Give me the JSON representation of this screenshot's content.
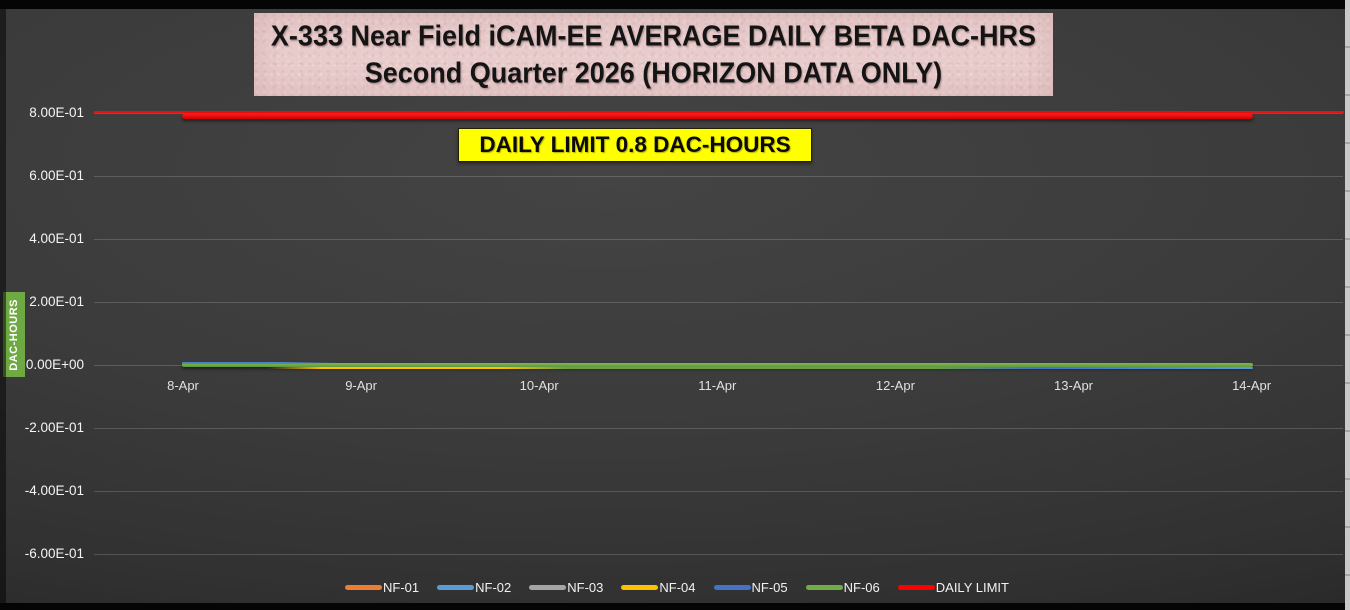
{
  "title": {
    "line1": "X-333 Near Field iCAM-EE AVERAGE DAILY BETA DAC-HRS",
    "line2": "Second Quarter 2026 (HORIZON DATA ONLY)"
  },
  "limit_label": "DAILY LIMIT 0.8 DAC-HOURS",
  "y_axis": {
    "title": "DAC-HOURS",
    "ticks": [
      "8.00E-01",
      "6.00E-01",
      "4.00E-01",
      "2.00E-01",
      "0.00E+00",
      "-2.00E-01",
      "-4.00E-01",
      "-6.00E-01"
    ]
  },
  "x_axis": {
    "labels": [
      "8-Apr",
      "9-Apr",
      "10-Apr",
      "11-Apr",
      "12-Apr",
      "13-Apr",
      "14-Apr"
    ]
  },
  "legend": [
    {
      "name": "NF-01",
      "color": "#ED7D31"
    },
    {
      "name": "NF-02",
      "color": "#5B9BD5"
    },
    {
      "name": "NF-03",
      "color": "#A5A5A5"
    },
    {
      "name": "NF-04",
      "color": "#FFC000"
    },
    {
      "name": "NF-05",
      "color": "#4472C4"
    },
    {
      "name": "NF-06",
      "color": "#70AD47"
    },
    {
      "name": "DAILY LIMIT",
      "color": "#FF0000"
    }
  ],
  "chart_data": {
    "type": "line",
    "title": "X-333 Near Field iCAM-EE AVERAGE DAILY BETA DAC-HRS Second Quarter 2026 (HORIZON DATA ONLY)",
    "ylabel": "DAC-HOURS",
    "x": [
      "8-Apr",
      "9-Apr",
      "10-Apr",
      "11-Apr",
      "12-Apr",
      "13-Apr",
      "14-Apr"
    ],
    "series": [
      {
        "name": "NF-01",
        "color": "#ED7D31",
        "values": [
          0.0,
          0.0,
          0.0,
          0.0,
          0.0,
          0.0,
          0.0
        ]
      },
      {
        "name": "NF-02",
        "color": "#5B9BD5",
        "values": [
          0.0,
          0.0,
          0.0,
          0.0,
          0.0,
          0.0,
          0.0
        ]
      },
      {
        "name": "NF-03",
        "color": "#A5A5A5",
        "values": [
          0.0,
          0.0,
          0.0,
          0.0,
          0.0,
          0.0,
          0.0
        ]
      },
      {
        "name": "NF-04",
        "color": "#FFC000",
        "values": [
          0.0,
          0.0,
          0.0,
          0.0,
          0.0,
          0.0,
          0.0
        ]
      },
      {
        "name": "NF-05",
        "color": "#4472C4",
        "values": [
          0.0,
          0.0,
          0.0,
          0.0,
          0.0,
          0.0,
          0.0
        ]
      },
      {
        "name": "NF-06",
        "color": "#70AD47",
        "values": [
          0.0,
          0.0,
          0.0,
          0.0,
          0.0,
          0.0,
          0.0
        ]
      },
      {
        "name": "DAILY LIMIT",
        "color": "#FF0000",
        "values": [
          0.8,
          0.8,
          0.8,
          0.8,
          0.8,
          0.8,
          0.8
        ]
      }
    ],
    "annotations": [
      "DAILY LIMIT 0.8 DAC-HOURS"
    ],
    "ylim": [
      -0.7,
      0.9
    ],
    "y_tick_step": 0.2,
    "grid": true,
    "legend_position": "bottom"
  }
}
